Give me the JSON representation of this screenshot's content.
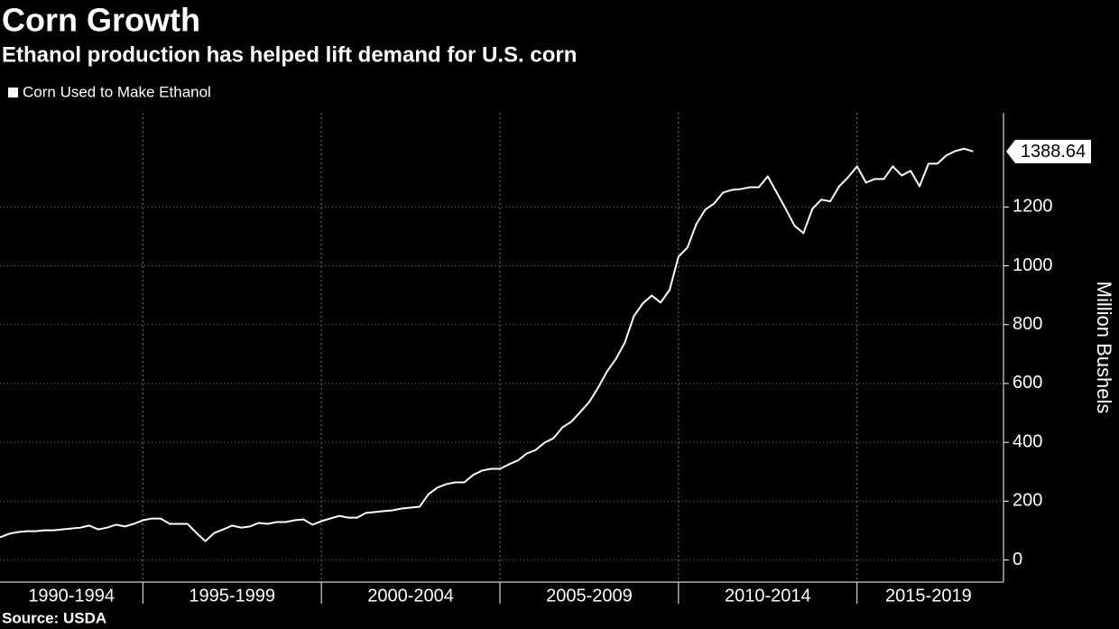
{
  "chart_data": {
    "type": "line",
    "title": "Corn Growth",
    "subtitle": "Ethanol production has helped lift demand for U.S. corn",
    "y_label": "Million Bushels",
    "source": "Source: USDA",
    "x": [
      1991,
      1991.25,
      1991.5,
      1991.75,
      1992,
      1992.25,
      1992.5,
      1992.75,
      1993,
      1993.25,
      1993.5,
      1993.75,
      1994,
      1994.25,
      1994.5,
      1994.75,
      1995,
      1995.25,
      1995.5,
      1995.75,
      1996,
      1996.25,
      1996.5,
      1996.75,
      1997,
      1997.25,
      1997.5,
      1997.75,
      1998,
      1998.25,
      1998.5,
      1998.75,
      1999,
      1999.25,
      1999.5,
      1999.75,
      2000,
      2000.25,
      2000.5,
      2000.75,
      2001,
      2001.25,
      2001.5,
      2001.75,
      2002,
      2002.25,
      2002.5,
      2002.75,
      2003,
      2003.25,
      2003.5,
      2003.75,
      2004,
      2004.25,
      2004.5,
      2004.75,
      2005,
      2005.25,
      2005.5,
      2005.75,
      2006,
      2006.25,
      2006.5,
      2006.75,
      2007,
      2007.25,
      2007.5,
      2007.75,
      2008,
      2008.25,
      2008.5,
      2008.75,
      2009,
      2009.25,
      2009.5,
      2009.75,
      2010,
      2010.25,
      2010.5,
      2010.75,
      2011,
      2011.25,
      2011.5,
      2011.75,
      2012,
      2012.25,
      2012.5,
      2012.75,
      2013,
      2013.25,
      2013.5,
      2013.75,
      2014,
      2014.25,
      2014.5,
      2014.75,
      2015,
      2015.25,
      2015.5,
      2015.75,
      2016,
      2016.25,
      2016.5,
      2016.75,
      2017,
      2017.25,
      2017.5,
      2017.75,
      2018,
      2018.25
    ],
    "series": [
      {
        "name": "Corn Used to Make Ethanol",
        "color": "#ffffff",
        "values": [
          77,
          89,
          95,
          98,
          98,
          101,
          101,
          104,
          107,
          110,
          117,
          104,
          110,
          120,
          114,
          123,
          135,
          141,
          141,
          123,
          123,
          123,
          92,
          64,
          92,
          104,
          117,
          110,
          114,
          126,
          123,
          129,
          129,
          135,
          138,
          120,
          132,
          141,
          150,
          144,
          144,
          160,
          163,
          166,
          169,
          175,
          178,
          181,
          224,
          246,
          258,
          264,
          264,
          289,
          304,
          310,
          310,
          325,
          338,
          362,
          374,
          399,
          414,
          451,
          470,
          503,
          537,
          586,
          641,
          684,
          740,
          829,
          872,
          899,
          875,
          918,
          1031,
          1062,
          1142,
          1191,
          1212,
          1249,
          1258,
          1261,
          1267,
          1267,
          1304,
          1249,
          1194,
          1136,
          1111,
          1194,
          1225,
          1219,
          1270,
          1301,
          1338,
          1283,
          1295,
          1295,
          1338,
          1307,
          1323,
          1270,
          1347,
          1347,
          1375,
          1390,
          1398,
          1388.64
        ]
      }
    ],
    "xlim": [
      1991,
      2019.05
    ],
    "xticks": [
      {
        "value": 1993,
        "label": "1990-1994"
      },
      {
        "value": 1997.5,
        "label": "1995-1999"
      },
      {
        "value": 2002.5,
        "label": "2000-2004"
      },
      {
        "value": 2007.5,
        "label": "2005-2009"
      },
      {
        "value": 2012.5,
        "label": "2010-2014"
      },
      {
        "value": 2017,
        "label": "2015-2019"
      }
    ],
    "xgrid": [
      1995,
      2000,
      2005,
      2010,
      2015
    ],
    "ylim": [
      -75,
      1520
    ],
    "yticks": [
      0,
      200,
      400,
      600,
      800,
      1000,
      1200
    ],
    "grid": true
  }
}
